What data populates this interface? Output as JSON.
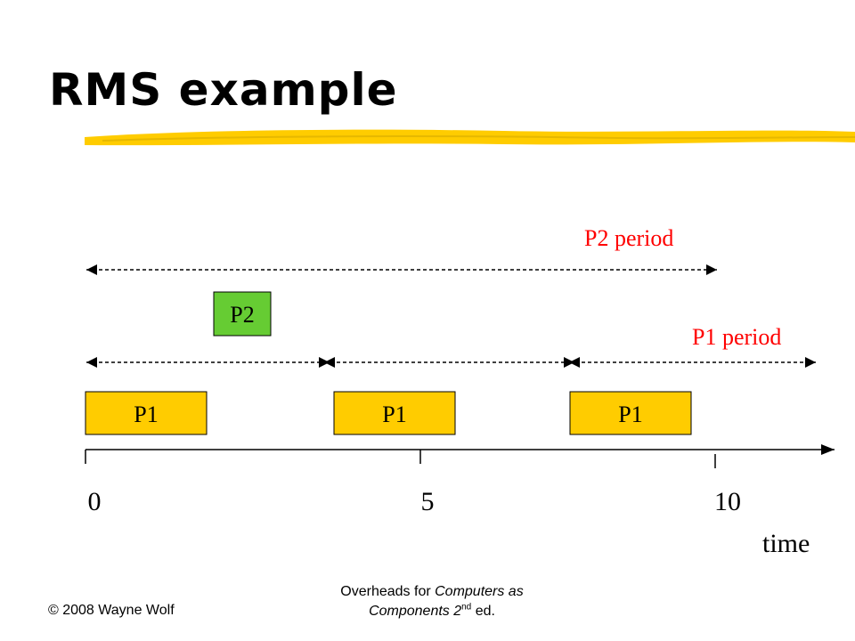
{
  "slide": {
    "title": "RMS example",
    "footer": {
      "copyright": "© 2008 Wayne Wolf",
      "overheads_prefix": "Overheads for ",
      "book_line1": "Computers as",
      "book_line2": "Components 2",
      "edition_sup": "nd",
      "edition_suffix": " ed."
    }
  },
  "diagram": {
    "p2_period_label": "P2 period",
    "p1_period_label": "P1 period",
    "p2_label": "P2",
    "p1_labels": [
      "P1",
      "P1",
      "P1"
    ],
    "tick_labels": [
      "0",
      "5",
      "10"
    ],
    "time_label": "time",
    "colors": {
      "p1_fill": "#ffcc00",
      "p2_fill": "#66cc33",
      "period_label": "#ff0000",
      "title_underline": "#ffcc00"
    }
  }
}
